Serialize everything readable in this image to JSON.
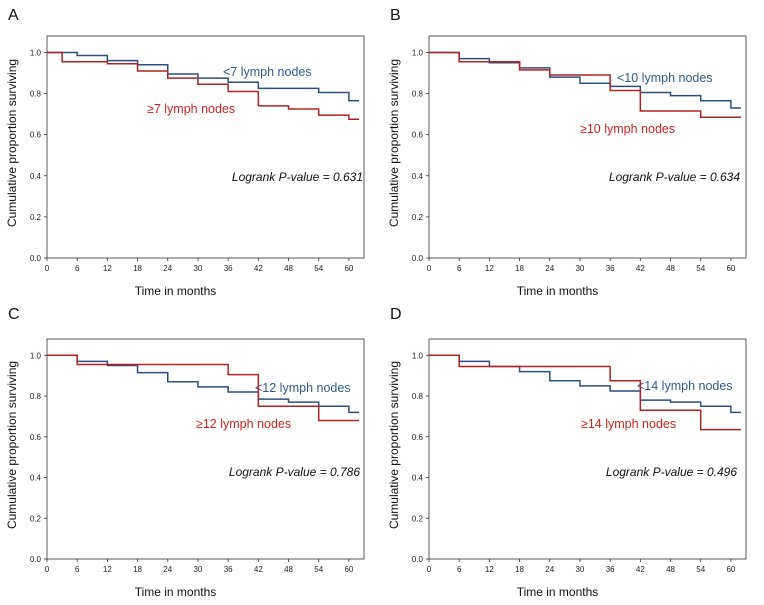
{
  "colors": {
    "blue": "#2b4f7e",
    "red": "#b22222",
    "blue_label": "#2e5b8f",
    "red_label": "#d42020"
  },
  "chart_data": [
    {
      "type": "line",
      "subtype": "kaplan-meier-step",
      "panel": "A",
      "xlabel": "Time in months",
      "ylabel": "Cumulative proportion surviving",
      "xlim": [
        0,
        63
      ],
      "ylim": [
        0,
        1.08
      ],
      "xticks": [
        0,
        6,
        12,
        18,
        24,
        30,
        36,
        42,
        48,
        54,
        60
      ],
      "yticks": [
        "0.0",
        "0.2",
        "0.4",
        "0.6",
        "0.8",
        "1.0"
      ],
      "annotation": "Logrank P-value = 0.631",
      "series": [
        {
          "name": "<7 lymph nodes",
          "color": "blue",
          "points": [
            [
              0,
              1.0
            ],
            [
              6,
              0.985
            ],
            [
              12,
              0.96
            ],
            [
              18,
              0.94
            ],
            [
              24,
              0.895
            ],
            [
              30,
              0.875
            ],
            [
              36,
              0.855
            ],
            [
              42,
              0.825
            ],
            [
              54,
              0.805
            ],
            [
              60,
              0.765
            ],
            [
              62,
              0.765
            ]
          ]
        },
        {
          "name": "≥7 lymph nodes",
          "color": "red",
          "points": [
            [
              0,
              1.0
            ],
            [
              3,
              0.955
            ],
            [
              12,
              0.945
            ],
            [
              18,
              0.91
            ],
            [
              24,
              0.875
            ],
            [
              30,
              0.845
            ],
            [
              36,
              0.81
            ],
            [
              42,
              0.74
            ],
            [
              48,
              0.725
            ],
            [
              54,
              0.695
            ],
            [
              60,
              0.675
            ],
            [
              62,
              0.675
            ]
          ]
        }
      ]
    },
    {
      "type": "line",
      "subtype": "kaplan-meier-step",
      "panel": "B",
      "xlabel": "Time in months",
      "ylabel": "Cumulative proportion surviving",
      "xlim": [
        0,
        63
      ],
      "ylim": [
        0,
        1.08
      ],
      "xticks": [
        0,
        6,
        12,
        18,
        24,
        30,
        36,
        42,
        48,
        54,
        60
      ],
      "yticks": [
        "0.0",
        "0.2",
        "0.4",
        "0.6",
        "0.8",
        "1.0"
      ],
      "annotation": "Logrank P-value = 0.634",
      "series": [
        {
          "name": "<10 lymph nodes",
          "color": "blue",
          "points": [
            [
              0,
              1.0
            ],
            [
              6,
              0.97
            ],
            [
              12,
              0.95
            ],
            [
              18,
              0.925
            ],
            [
              24,
              0.88
            ],
            [
              30,
              0.85
            ],
            [
              36,
              0.835
            ],
            [
              42,
              0.805
            ],
            [
              48,
              0.79
            ],
            [
              54,
              0.765
            ],
            [
              60,
              0.73
            ],
            [
              62,
              0.73
            ]
          ]
        },
        {
          "name": "≥10 lymph nodes",
          "color": "red",
          "points": [
            [
              0,
              1.0
            ],
            [
              6,
              0.955
            ],
            [
              12,
              0.955
            ],
            [
              18,
              0.915
            ],
            [
              24,
              0.89
            ],
            [
              36,
              0.815
            ],
            [
              42,
              0.715
            ],
            [
              54,
              0.685
            ],
            [
              62,
              0.685
            ]
          ]
        }
      ]
    },
    {
      "type": "line",
      "subtype": "kaplan-meier-step",
      "panel": "C",
      "xlabel": "Time in months",
      "ylabel": "Cumulative proportion surviving",
      "xlim": [
        0,
        63
      ],
      "ylim": [
        0,
        1.08
      ],
      "xticks": [
        0,
        6,
        12,
        18,
        24,
        30,
        36,
        42,
        48,
        54,
        60
      ],
      "yticks": [
        "0.0",
        "0.2",
        "0.4",
        "0.6",
        "0.8",
        "1.0"
      ],
      "annotation": "Logrank P-value = 0.786",
      "series": [
        {
          "name": "<12 lymph nodes",
          "color": "blue",
          "points": [
            [
              0,
              1.0
            ],
            [
              6,
              0.97
            ],
            [
              12,
              0.95
            ],
            [
              18,
              0.915
            ],
            [
              24,
              0.87
            ],
            [
              30,
              0.845
            ],
            [
              36,
              0.82
            ],
            [
              42,
              0.785
            ],
            [
              48,
              0.77
            ],
            [
              54,
              0.75
            ],
            [
              60,
              0.72
            ],
            [
              62,
              0.72
            ]
          ]
        },
        {
          "name": "≥12 lymph nodes",
          "color": "red",
          "points": [
            [
              0,
              1.0
            ],
            [
              6,
              0.955
            ],
            [
              12,
              0.955
            ],
            [
              36,
              0.905
            ],
            [
              42,
              0.75
            ],
            [
              54,
              0.68
            ],
            [
              62,
              0.68
            ]
          ]
        }
      ]
    },
    {
      "type": "line",
      "subtype": "kaplan-meier-step",
      "panel": "D",
      "xlabel": "Time in months",
      "ylabel": "Cumulative proportion surviving",
      "xlim": [
        0,
        63
      ],
      "ylim": [
        0,
        1.08
      ],
      "xticks": [
        0,
        6,
        12,
        18,
        24,
        30,
        36,
        42,
        48,
        54,
        60
      ],
      "yticks": [
        "0.0",
        "0.2",
        "0.4",
        "0.6",
        "0.8",
        "1.0"
      ],
      "annotation": "Logrank P-value = 0.496",
      "series": [
        {
          "name": "<14 lymph nodes",
          "color": "blue",
          "points": [
            [
              0,
              1.0
            ],
            [
              6,
              0.97
            ],
            [
              12,
              0.945
            ],
            [
              18,
              0.92
            ],
            [
              24,
              0.875
            ],
            [
              30,
              0.85
            ],
            [
              36,
              0.825
            ],
            [
              42,
              0.78
            ],
            [
              48,
              0.77
            ],
            [
              54,
              0.75
            ],
            [
              60,
              0.72
            ],
            [
              62,
              0.72
            ]
          ]
        },
        {
          "name": "≥14 lymph nodes",
          "color": "red",
          "points": [
            [
              0,
              1.0
            ],
            [
              6,
              0.945
            ],
            [
              12,
              0.945
            ],
            [
              36,
              0.875
            ],
            [
              42,
              0.73
            ],
            [
              54,
              0.635
            ],
            [
              62,
              0.635
            ]
          ]
        }
      ]
    }
  ]
}
